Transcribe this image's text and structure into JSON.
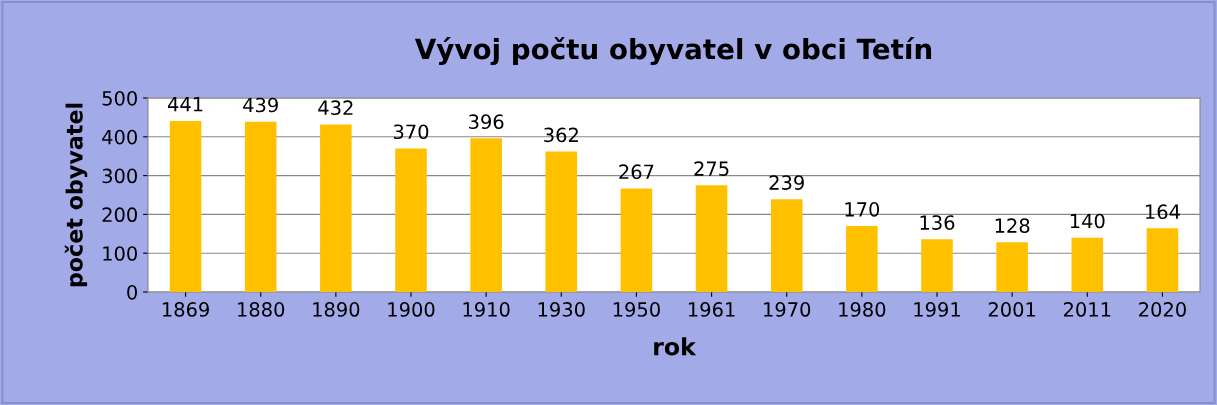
{
  "chart_data": {
    "type": "bar",
    "title": "Vývoj počtu obyvatel v obci Tetín",
    "xlabel": "rok",
    "ylabel": "počet obyvatel",
    "categories": [
      "1869",
      "1880",
      "1890",
      "1900",
      "1910",
      "1930",
      "1950",
      "1961",
      "1970",
      "1980",
      "1991",
      "2001",
      "2011",
      "2020"
    ],
    "values": [
      441,
      439,
      432,
      370,
      396,
      362,
      267,
      275,
      239,
      170,
      136,
      128,
      140,
      164
    ],
    "color": "#ffc000",
    "ylim": [
      0,
      500
    ],
    "yticks": [
      0,
      100,
      200,
      300,
      400,
      500
    ],
    "grid": "y",
    "data_labels": true,
    "legend": false
  }
}
